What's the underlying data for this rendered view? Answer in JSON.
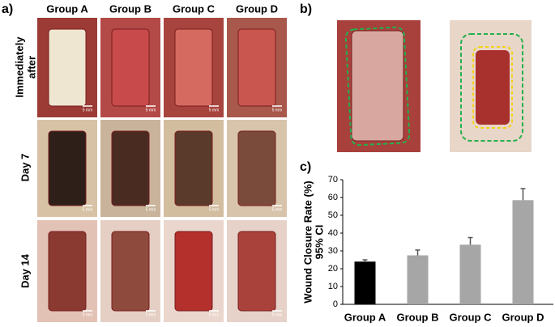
{
  "panel_a": {
    "label": "a)",
    "columns": [
      "Group A",
      "Group B",
      "Group C",
      "Group D"
    ],
    "rows": [
      [
        "Immediately",
        "after"
      ],
      [
        "Day 7"
      ],
      [
        "Day 14"
      ]
    ],
    "scale_bar": "5 mm"
  },
  "panel_b": {
    "label": "b)"
  },
  "chart_data": {
    "type": "bar",
    "panel_label": "c)",
    "ylabel": [
      "Wound Closure Rate (%)",
      "95% CI"
    ],
    "categories": [
      "Group A",
      "Group B",
      "Group C",
      "Group D"
    ],
    "values": [
      24,
      27.5,
      33.5,
      58.5
    ],
    "errors": [
      1,
      3,
      4,
      6.5
    ],
    "colors": [
      "#000000",
      "#a6a6a6",
      "#a6a6a6",
      "#a6a6a6"
    ],
    "ylim": [
      0,
      70
    ],
    "yticks": [
      0,
      10,
      20,
      30,
      40,
      50,
      60,
      70
    ]
  }
}
